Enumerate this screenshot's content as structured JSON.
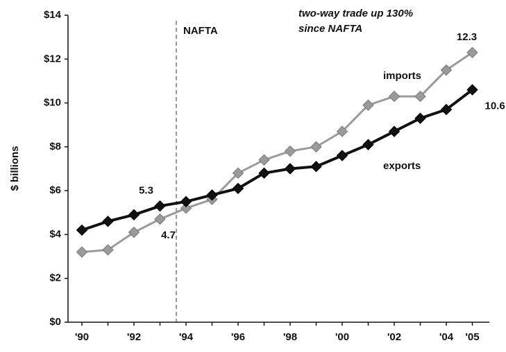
{
  "chart_data": {
    "type": "line",
    "y_label": "$ billions",
    "annotation": [
      "two-way trade up 130%",
      "since NAFTA"
    ],
    "marker_line": {
      "label": "NAFTA",
      "category_index": 4
    },
    "categories": [
      "'90",
      null,
      "'92",
      null,
      "'94",
      null,
      "'96",
      null,
      "'98",
      null,
      "'00",
      null,
      "'02",
      null,
      "'04",
      "'05"
    ],
    "series": [
      {
        "name": "imports",
        "color": "#9a9a9a",
        "values": [
          3.2,
          3.3,
          4.1,
          4.7,
          5.2,
          5.6,
          6.8,
          7.4,
          7.8,
          8.0,
          8.7,
          9.9,
          10.3,
          10.3,
          11.5,
          12.3
        ],
        "value_labels": [
          null,
          null,
          null,
          "4.7",
          null,
          null,
          null,
          null,
          null,
          null,
          null,
          null,
          null,
          null,
          null,
          "12.3"
        ]
      },
      {
        "name": "exports",
        "color": "#111111",
        "values": [
          4.2,
          4.6,
          4.9,
          5.3,
          5.5,
          5.8,
          6.1,
          6.8,
          7.0,
          7.1,
          7.6,
          8.1,
          8.7,
          9.3,
          9.7,
          10.6
        ],
        "value_labels": [
          null,
          null,
          null,
          "5.3",
          null,
          null,
          null,
          null,
          null,
          null,
          null,
          null,
          null,
          null,
          null,
          "10.6"
        ]
      }
    ],
    "ylim": [
      0,
      14
    ],
    "yticks": [
      {
        "value": 0,
        "label": "$0"
      },
      {
        "value": 2,
        "label": "$2"
      },
      {
        "value": 4,
        "label": "$4"
      },
      {
        "value": 6,
        "label": "$6"
      },
      {
        "value": 8,
        "label": "$8"
      },
      {
        "value": 10,
        "label": "$10"
      },
      {
        "value": 12,
        "label": "$12"
      },
      {
        "value": 14,
        "label": "$14"
      }
    ],
    "grid": false
  }
}
